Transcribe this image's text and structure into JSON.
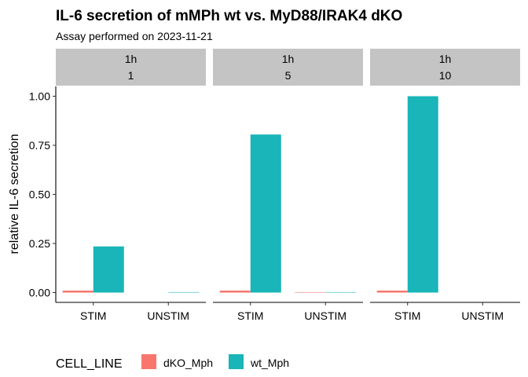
{
  "chart_data": {
    "type": "bar",
    "title": "IL-6 secretion of mMPh wt vs. MyD88/IRAK4 dKO",
    "subtitle": "Assay performed on 2023-11-21",
    "ylabel": "relative  IL-6 secretion",
    "xlabel": "",
    "ylim": [
      -0.05,
      1.05
    ],
    "yticks": [
      "0.00",
      "0.25",
      "0.50",
      "0.75",
      "1.00"
    ],
    "ytick_values": [
      0,
      0.25,
      0.5,
      0.75,
      1.0
    ],
    "categories": [
      "STIM",
      "UNSTIM"
    ],
    "legend_title": "CELL_LINE",
    "legend_position": "bottom",
    "grid": false,
    "series": [
      {
        "name": "dKO_Mph",
        "color": "#F8766D"
      },
      {
        "name": "wt_Mph",
        "color": "#19B5B8"
      }
    ],
    "panels": [
      {
        "strip_top": "1h",
        "strip_bottom": "1",
        "values": {
          "dKO_Mph": [
            0.01,
            0.0
          ],
          "wt_Mph": [
            0.235,
            0.002
          ]
        }
      },
      {
        "strip_top": "1h",
        "strip_bottom": "5",
        "values": {
          "dKO_Mph": [
            0.01,
            0.002
          ],
          "wt_Mph": [
            0.805,
            0.002
          ]
        }
      },
      {
        "strip_top": "1h",
        "strip_bottom": "10",
        "values": {
          "dKO_Mph": [
            0.01,
            0.0
          ],
          "wt_Mph": [
            1.0,
            0.0
          ]
        }
      }
    ]
  }
}
